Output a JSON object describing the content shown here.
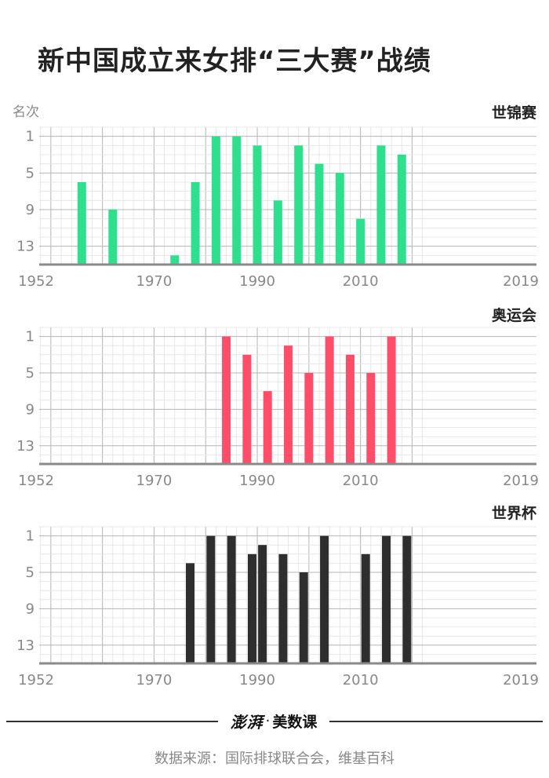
{
  "title": "新中国成立来女排“三大赛”战绩",
  "y_unit": "名次",
  "footer": {
    "logo_mark": "澎湃",
    "logo_dot": "·",
    "logo_text": "美数课",
    "source": "数据来源：国际排球联合会，维基百科"
  },
  "colors": {
    "world_championship": "#2ee08d",
    "olympics": "#ff4d6a",
    "world_cup": "#2e2e2e",
    "grid": "#d0d0d0",
    "axis": "#8a8a8a"
  },
  "chart_data": [
    {
      "type": "bar",
      "title": "世锦赛",
      "xlabel": "",
      "ylabel": "名次",
      "x_ticks": [
        "1952",
        "1970",
        "1990",
        "2010",
        "2019"
      ],
      "y_ticks": [
        "1",
        "5",
        "9",
        "13"
      ],
      "y_inverted": true,
      "ylim": [
        0,
        15
      ],
      "xlim": [
        1952,
        2020
      ],
      "grid": true,
      "color": "#2ee08d",
      "x": [
        1956,
        1962,
        1974,
        1978,
        1982,
        1986,
        1990,
        1994,
        1998,
        2002,
        2006,
        2010,
        2014,
        2018
      ],
      "values": [
        6,
        9,
        14,
        6,
        1,
        1,
        2,
        8,
        2,
        4,
        5,
        10,
        2,
        3
      ]
    },
    {
      "type": "bar",
      "title": "奥运会",
      "xlabel": "",
      "ylabel": "名次",
      "x_ticks": [
        "1952",
        "1970",
        "1990",
        "2010",
        "2019"
      ],
      "y_ticks": [
        "1",
        "5",
        "9",
        "13"
      ],
      "y_inverted": true,
      "ylim": [
        0,
        15
      ],
      "xlim": [
        1952,
        2020
      ],
      "grid": true,
      "color": "#ff4d6a",
      "x": [
        1984,
        1988,
        1992,
        1996,
        2000,
        2004,
        2008,
        2012,
        2016
      ],
      "values": [
        1,
        3,
        7,
        2,
        5,
        1,
        3,
        5,
        1
      ]
    },
    {
      "type": "bar",
      "title": "世界杯",
      "xlabel": "",
      "ylabel": "名次",
      "x_ticks": [
        "1952",
        "1970",
        "1990",
        "2010",
        "2019"
      ],
      "y_ticks": [
        "1",
        "5",
        "9",
        "13"
      ],
      "y_inverted": true,
      "ylim": [
        0,
        15
      ],
      "xlim": [
        1952,
        2020
      ],
      "grid": true,
      "color": "#2e2e2e",
      "x": [
        1977,
        1981,
        1985,
        1989,
        1991,
        1995,
        1999,
        2003,
        2011,
        2015,
        2019
      ],
      "values": [
        4,
        1,
        1,
        3,
        2,
        3,
        5,
        1,
        3,
        1,
        1
      ]
    }
  ]
}
